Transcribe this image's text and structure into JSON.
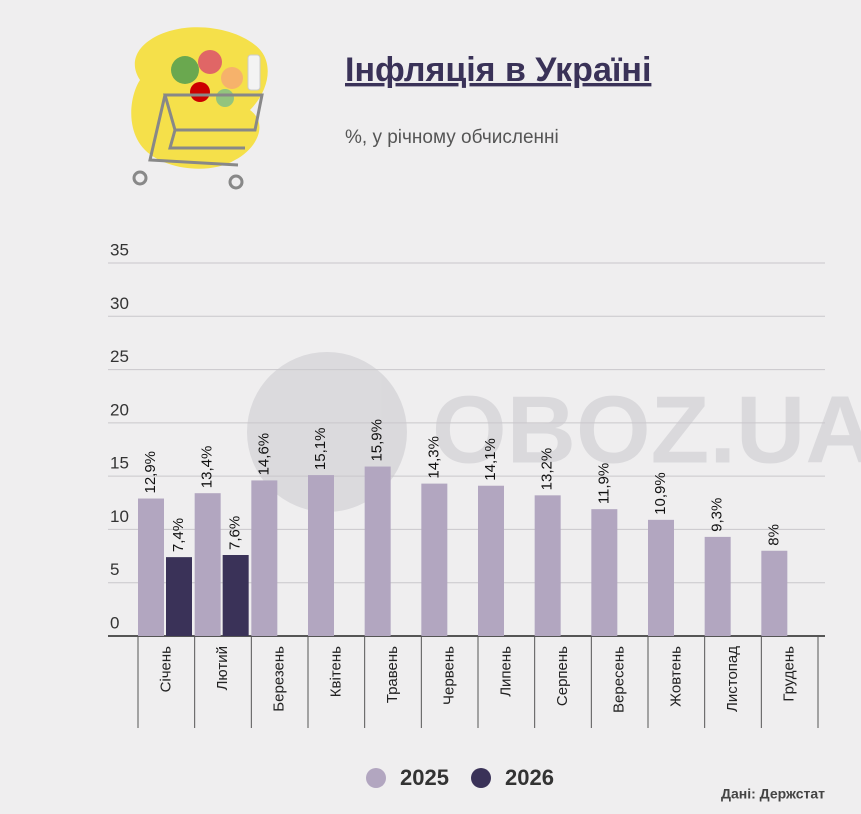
{
  "chart_data": {
    "type": "bar",
    "title": "Інфляція в Україні",
    "subtitle": "%, у річному обчисленні",
    "source": "Дані: Держстат",
    "watermark": "OBOZ.UA",
    "categories": [
      "Січень",
      "Лютий",
      "Березень",
      "Квітень",
      "Травень",
      "Червень",
      "Липень",
      "Серпень",
      "Вересень",
      "Жовтень",
      "Листопад",
      "Грудень"
    ],
    "series": [
      {
        "name": "2025",
        "color": "#b2a6c0",
        "values": [
          12.9,
          13.4,
          14.6,
          15.1,
          15.9,
          14.3,
          14.1,
          13.2,
          11.9,
          10.9,
          9.3,
          8
        ],
        "value_labels": [
          "12,9%",
          "13,4%",
          "14,6%",
          "15,1%",
          "15,9%",
          "14,3%",
          "14,1%",
          "13,2%",
          "11,9%",
          "10,9%",
          "9,3%",
          "8%"
        ]
      },
      {
        "name": "2026",
        "color": "#3a3258",
        "values": [
          7.4,
          7.6,
          null,
          null,
          null,
          null,
          null,
          null,
          null,
          null,
          null,
          null
        ],
        "value_labels": [
          "7,4%",
          "7,6%",
          null,
          null,
          null,
          null,
          null,
          null,
          null,
          null,
          null,
          null
        ]
      }
    ],
    "ylim": [
      0,
      35
    ],
    "yticks": [
      0,
      5,
      10,
      15,
      20,
      25,
      30,
      35
    ],
    "grid": true
  }
}
